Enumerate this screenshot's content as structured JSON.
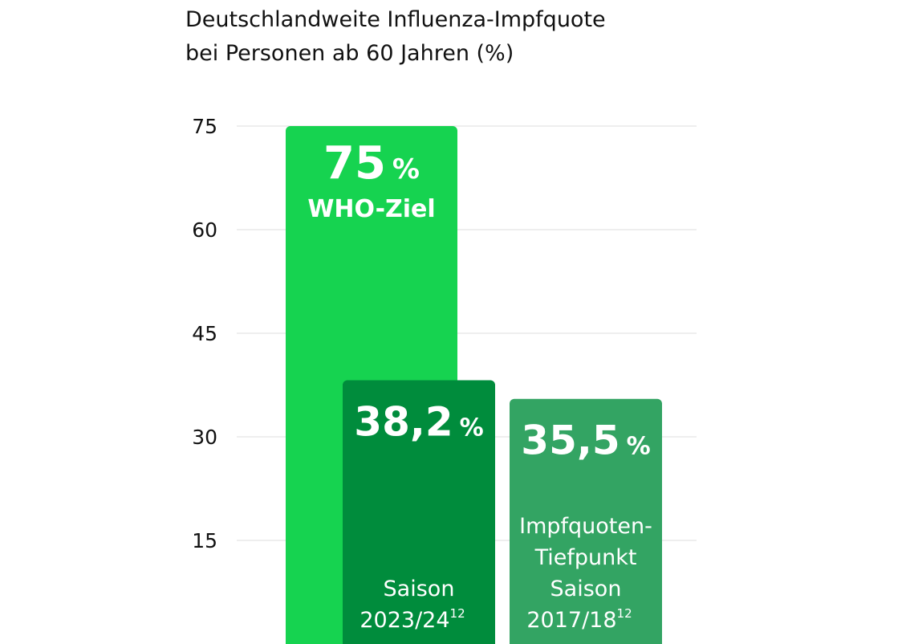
{
  "chart_data": {
    "type": "bar",
    "title_lines": [
      "Deutschlandweite Influenza-Impfquote",
      "bei Personen ab 60 Jahren (%)"
    ],
    "y_ticks": [
      "15",
      "30",
      "45",
      "60",
      "75"
    ],
    "ylim": [
      0,
      75
    ],
    "grid": true,
    "bars": [
      {
        "value": 75,
        "value_text": "75",
        "unit": "%",
        "label_lines": [
          "WHO-Ziel"
        ],
        "superscript": "",
        "color": "#16D350"
      },
      {
        "value": 38.2,
        "value_text": "38,2",
        "unit": "%",
        "label_lines": [
          "Saison",
          "2023/24"
        ],
        "superscript": "12",
        "color": "#008C3C"
      },
      {
        "value": 35.5,
        "value_text": "35,5",
        "unit": "%",
        "label_lines": [
          "Impfquoten-",
          "Tiefpunkt",
          "Saison",
          "2017/18"
        ],
        "superscript": "12",
        "color": "#33A463"
      }
    ]
  }
}
